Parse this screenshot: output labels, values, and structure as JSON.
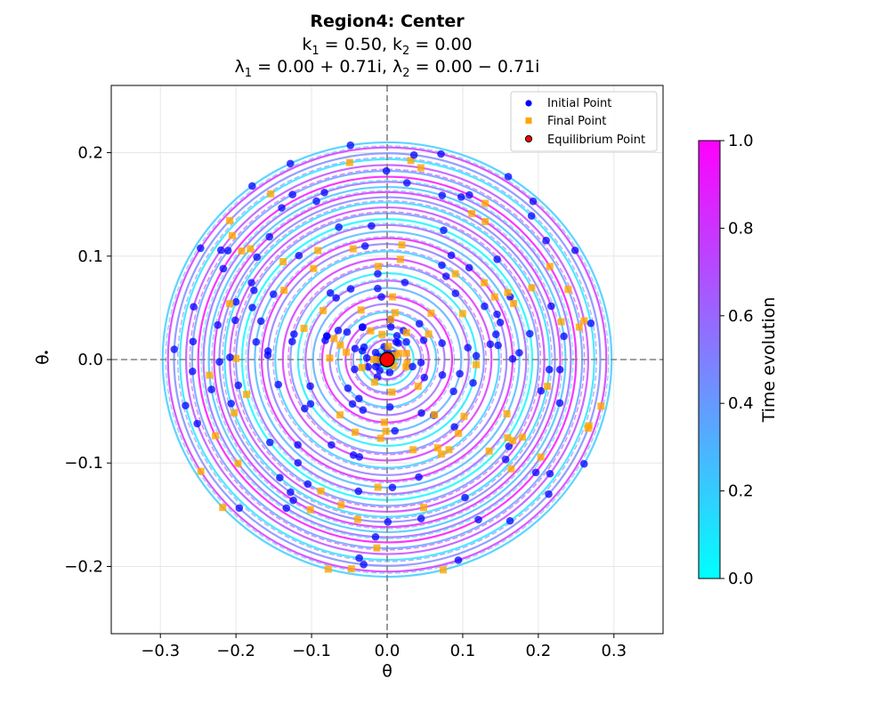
{
  "chart_data": {
    "type": "line",
    "title": {
      "region_word": "Region4",
      "region_kind": "Center",
      "k1_value": "0.50",
      "k2_value": "0.00",
      "lambda1_value": "0.00 + 0.71i",
      "lambda2_value": "0.00 − 0.71i"
    },
    "xlabel": "θ",
    "ylabel": "θ",
    "xlim": [
      -0.365,
      0.365
    ],
    "ylim": [
      -0.265,
      0.265
    ],
    "xticks": [
      -0.3,
      -0.2,
      -0.1,
      0.0,
      0.1,
      0.2,
      0.3
    ],
    "xtick_labels": [
      "−0.3",
      "−0.2",
      "−0.1",
      "0.0",
      "0.1",
      "0.2",
      "0.3"
    ],
    "yticks": [
      -0.2,
      -0.1,
      0.0,
      0.1,
      0.2
    ],
    "ytick_labels": [
      "−0.2",
      "−0.1",
      "0.0",
      "0.1",
      "0.2"
    ],
    "grid": true,
    "legend_position": "top-right",
    "legend": [
      {
        "label": "Initial Point",
        "marker": "circle",
        "color": "#0000ff"
      },
      {
        "label": "Final Point",
        "marker": "square",
        "color": "#ffa500"
      },
      {
        "label": "Equilibrium Point",
        "marker": "circle",
        "color": "#ff0000"
      }
    ],
    "equilibrium_point": {
      "x": 0.0,
      "y": 0.0
    },
    "trajectory_type": "elliptical orbits around the equilibrium (center)",
    "orbit_aspect_ratio": 0.707,
    "orbit_radii_theta": [
      0.012,
      0.018,
      0.027,
      0.035,
      0.045,
      0.055,
      0.065,
      0.076,
      0.086,
      0.098,
      0.108,
      0.118,
      0.128,
      0.138,
      0.148,
      0.158,
      0.166,
      0.175,
      0.184,
      0.192,
      0.2,
      0.208,
      0.215,
      0.222,
      0.229,
      0.236,
      0.243,
      0.25,
      0.258,
      0.266,
      0.274,
      0.282,
      0.29,
      0.297
    ],
    "colorbar": {
      "label": "Time evolution",
      "min": 0.0,
      "max": 1.0,
      "ticks": [
        0.0,
        0.2,
        0.4,
        0.6,
        0.8,
        1.0
      ],
      "tick_labels": [
        "0.0",
        "0.2",
        "0.4",
        "0.6",
        "0.8",
        "1.0"
      ],
      "colormap": "cool",
      "color_low": "#00ffff",
      "color_high": "#ff00ff"
    },
    "colors": {
      "initial_point": "#0000ff",
      "final_point": "#ffa500",
      "equilibrium_point": "#ff0000",
      "grid": "#e6e6e6",
      "axis_reference_line": "#808080"
    }
  }
}
